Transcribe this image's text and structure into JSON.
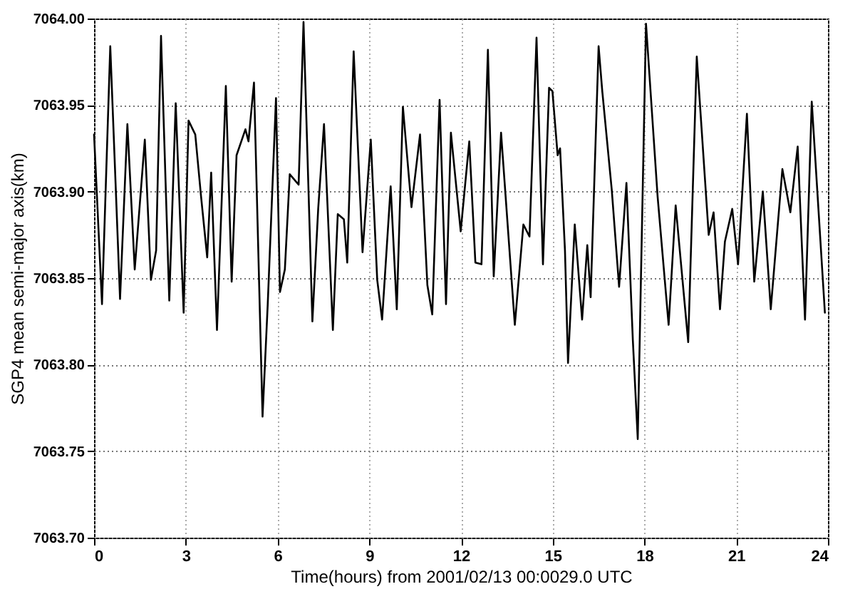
{
  "chart_data": {
    "type": "line",
    "xlabel": "Time(hours) from 2001/02/13 00:0029.0 UTC",
    "ylabel": "SGP4 mean semi-major axis(km)",
    "xlim": [
      0,
      24
    ],
    "xticks": [
      0,
      3,
      6,
      9,
      12,
      15,
      18,
      21,
      24
    ],
    "ylim": [
      7063.7,
      7064.0
    ],
    "yticks": [
      {
        "value": 7063.7,
        "label": "7063.70"
      },
      {
        "value": 7063.75,
        "label": "7063.75"
      },
      {
        "value": 7063.8,
        "label": "7063.80"
      },
      {
        "value": 7063.85,
        "label": "7063.85"
      },
      {
        "value": 7063.9,
        "label": "7063.90"
      },
      {
        "value": 7063.95,
        "label": "7063.95"
      },
      {
        "value": 7064.0,
        "label": "7064.00"
      }
    ],
    "grid": true,
    "marker": "none",
    "line_style": "solid",
    "x": [
      0,
      0.26,
      0.53,
      0.85,
      1.09,
      1.33,
      1.66,
      1.86,
      2.03,
      2.19,
      2.46,
      2.67,
      2.93,
      3.09,
      3.31,
      3.5,
      3.7,
      3.83,
      4.02,
      4.31,
      4.5,
      4.66,
      4.95,
      5.05,
      5.23,
      5.51,
      5.68,
      5.95,
      6.08,
      6.24,
      6.4,
      6.69,
      6.85,
      7.14,
      7.33,
      7.52,
      7.81,
      7.97,
      8.17,
      8.28,
      8.49,
      8.78,
      9.05,
      9.26,
      9.42,
      9.7,
      9.9,
      10.1,
      10.38,
      10.66,
      10.9,
      11.06,
      11.3,
      11.51,
      11.67,
      11.99,
      12.27,
      12.47,
      12.67,
      12.88,
      13.07,
      13.31,
      13.76,
      14.04,
      14.24,
      14.47,
      14.68,
      14.88,
      14.99,
      15.16,
      15.24,
      15.4,
      15.5,
      15.72,
      15.96,
      16.13,
      16.24,
      16.5,
      16.62,
      16.93,
      17.17,
      17.41,
      17.62,
      17.78,
      18.05,
      18.43,
      18.79,
      19.02,
      19.43,
      19.71,
      20.1,
      20.26,
      20.47,
      20.63,
      20.87,
      21.06,
      21.35,
      21.59,
      21.87,
      22.13,
      22.51,
      22.77,
      23.01,
      23.25,
      23.47,
      23.9
    ],
    "series": [
      {
        "color": "#000000",
        "values": [
          7063.933,
          7063.835,
          7063.984,
          7063.838,
          7063.939,
          7063.855,
          7063.93,
          7063.849,
          7063.866,
          7063.99,
          7063.837,
          7063.951,
          7063.83,
          7063.941,
          7063.933,
          7063.897,
          7063.862,
          7063.911,
          7063.82,
          7063.961,
          7063.848,
          7063.921,
          7063.936,
          7063.929,
          7063.963,
          7063.77,
          7063.835,
          7063.954,
          7063.842,
          7063.855,
          7063.91,
          7063.904,
          7063.998,
          7063.825,
          7063.89,
          7063.939,
          7063.82,
          7063.887,
          7063.884,
          7063.859,
          7063.981,
          7063.865,
          7063.93,
          7063.849,
          7063.826,
          7063.903,
          7063.832,
          7063.949,
          7063.891,
          7063.933,
          7063.846,
          7063.829,
          7063.953,
          7063.835,
          7063.934,
          7063.877,
          7063.929,
          7063.859,
          7063.858,
          7063.982,
          7063.851,
          7063.934,
          7063.823,
          7063.881,
          7063.874,
          7063.989,
          7063.858,
          7063.96,
          7063.958,
          7063.921,
          7063.925,
          7063.866,
          7063.801,
          7063.881,
          7063.826,
          7063.869,
          7063.839,
          7063.984,
          7063.958,
          7063.901,
          7063.845,
          7063.905,
          7063.814,
          7063.757,
          7063.997,
          7063.897,
          7063.823,
          7063.892,
          7063.813,
          7063.978,
          7063.875,
          7063.888,
          7063.832,
          7063.871,
          7063.89,
          7063.858,
          7063.945,
          7063.848,
          7063.9,
          7063.832,
          7063.913,
          7063.888,
          7063.926,
          7063.826,
          7063.952,
          7063.83
        ]
      }
    ]
  }
}
